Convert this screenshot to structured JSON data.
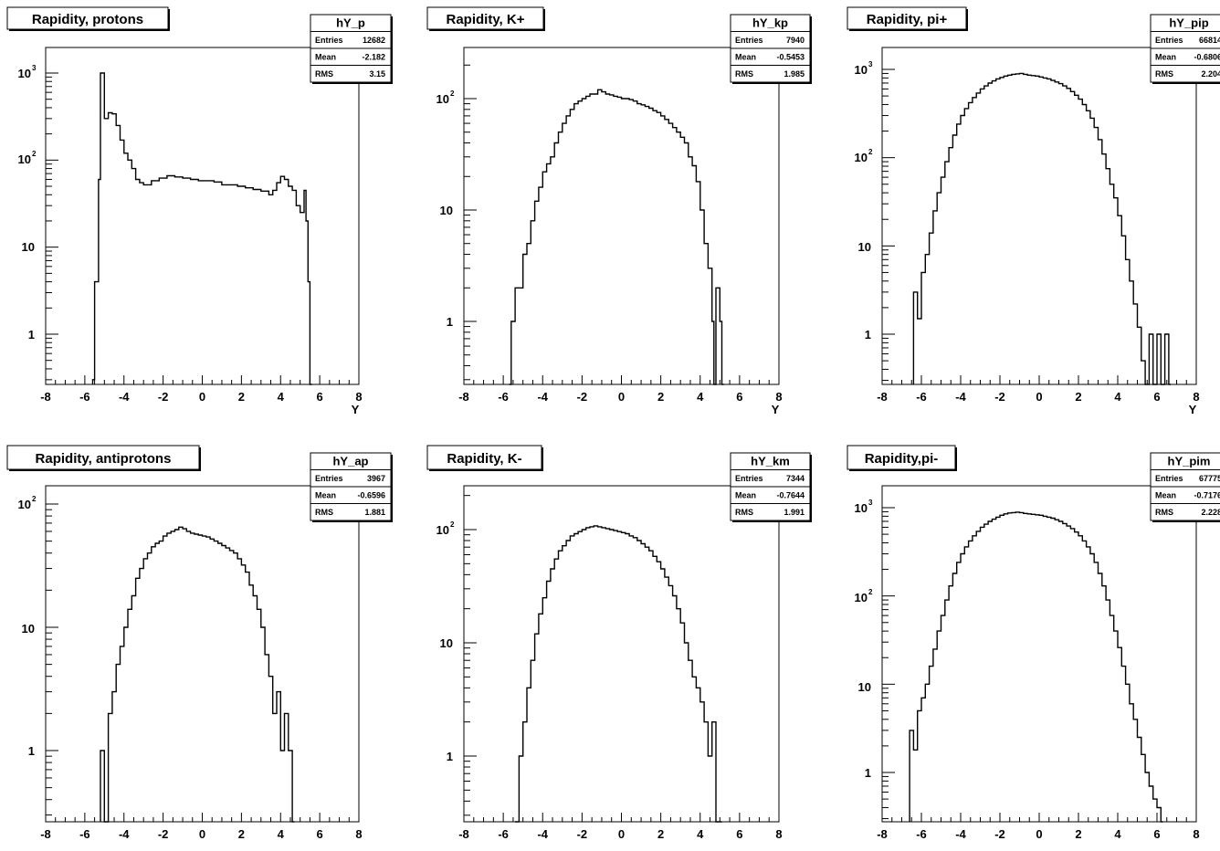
{
  "chart_data": [
    {
      "type": "histogram",
      "title": "Rapidity, protons",
      "xlabel": "Y",
      "xlim": [
        -8,
        8
      ],
      "yscale": "log",
      "ylim": [
        0.26,
        1500
      ],
      "stats": {
        "name": "hY_p",
        "entries": "12682",
        "mean": "-2.182",
        "rms": "3.15"
      },
      "series": [
        {
          "name": "hY_p",
          "x": [
            -5.6,
            -5.5,
            -5.3,
            -5.2,
            -5.0,
            -4.8,
            -4.6,
            -4.4,
            -4.2,
            -4.0,
            -3.8,
            -3.6,
            -3.4,
            -3.2,
            -3.0,
            -2.6,
            -2.2,
            -1.8,
            -1.4,
            -1.0,
            -0.6,
            -0.2,
            0.2,
            0.6,
            1.0,
            1.4,
            1.8,
            2.2,
            2.6,
            3.0,
            3.4,
            3.6,
            3.8,
            4.0,
            4.2,
            4.4,
            4.6,
            4.8,
            5.0,
            5.2,
            5.3,
            5.4,
            5.5
          ],
          "y": [
            0.3,
            4,
            60,
            1000,
            300,
            350,
            340,
            250,
            170,
            120,
            100,
            80,
            60,
            55,
            52,
            58,
            62,
            66,
            64,
            62,
            60,
            58,
            58,
            56,
            52,
            52,
            50,
            48,
            46,
            44,
            40,
            45,
            55,
            65,
            60,
            50,
            45,
            30,
            25,
            45,
            20,
            4,
            0.26
          ]
        }
      ]
    },
    {
      "type": "histogram",
      "title": "Rapidity, K+",
      "xlabel": "Y",
      "xlim": [
        -8,
        8
      ],
      "yscale": "log",
      "ylim": [
        0.26,
        280
      ],
      "stats": {
        "name": "hY_kp",
        "entries": "7940",
        "mean": "-0.5453",
        "rms": "1.985"
      },
      "series": [
        {
          "name": "hY_kp",
          "x": [
            -5.7,
            -5.6,
            -5.4,
            -5.2,
            -5.0,
            -4.8,
            -4.6,
            -4.4,
            -4.2,
            -4.0,
            -3.8,
            -3.6,
            -3.4,
            -3.2,
            -3.0,
            -2.8,
            -2.6,
            -2.4,
            -2.2,
            -2.0,
            -1.8,
            -1.6,
            -1.4,
            -1.2,
            -1.0,
            -0.8,
            -0.6,
            -0.4,
            -0.2,
            0.0,
            0.2,
            0.4,
            0.6,
            0.8,
            1.0,
            1.2,
            1.4,
            1.6,
            1.8,
            2.0,
            2.2,
            2.4,
            2.6,
            2.8,
            3.0,
            3.2,
            3.4,
            3.6,
            3.8,
            4.0,
            4.2,
            4.4,
            4.6,
            4.7,
            4.8,
            5.0,
            5.1
          ],
          "y": [
            0.26,
            1,
            2,
            2,
            4,
            5,
            8,
            12,
            16,
            22,
            26,
            30,
            40,
            50,
            60,
            70,
            80,
            90,
            95,
            100,
            105,
            110,
            110,
            120,
            115,
            110,
            108,
            105,
            103,
            100,
            100,
            98,
            95,
            90,
            88,
            85,
            82,
            78,
            75,
            70,
            65,
            60,
            55,
            50,
            45,
            40,
            30,
            25,
            18,
            10,
            5,
            3,
            1,
            0.26,
            2,
            1,
            0.26
          ]
        }
      ]
    },
    {
      "type": "histogram",
      "title": "Rapidity, pi+",
      "xlabel": "Y",
      "xlim": [
        -8,
        8
      ],
      "yscale": "log",
      "ylim": [
        0.26,
        1500
      ],
      "stats": {
        "name": "hY_pip",
        "entries": "66814",
        "mean": "-0.6806",
        "rms": "2.204"
      },
      "series": [
        {
          "name": "hY_pip",
          "x": [
            -6.4,
            -6.2,
            -6.0,
            -5.8,
            -5.6,
            -5.4,
            -5.2,
            -5.0,
            -4.8,
            -4.6,
            -4.4,
            -4.2,
            -4.0,
            -3.8,
            -3.6,
            -3.4,
            -3.2,
            -3.0,
            -2.8,
            -2.6,
            -2.4,
            -2.2,
            -2.0,
            -1.8,
            -1.6,
            -1.4,
            -1.2,
            -1.0,
            -0.8,
            -0.6,
            -0.4,
            -0.2,
            0.0,
            0.2,
            0.4,
            0.6,
            0.8,
            1.0,
            1.2,
            1.4,
            1.6,
            1.8,
            2.0,
            2.2,
            2.4,
            2.6,
            2.8,
            3.0,
            3.2,
            3.4,
            3.6,
            3.8,
            4.0,
            4.2,
            4.4,
            4.6,
            4.8,
            5.0,
            5.2,
            5.4,
            5.6,
            5.8,
            6.0,
            6.2,
            6.4,
            6.6
          ],
          "y": [
            3,
            1.5,
            5,
            8,
            14,
            25,
            40,
            60,
            90,
            130,
            180,
            240,
            300,
            360,
            420,
            480,
            540,
            600,
            650,
            700,
            740,
            780,
            810,
            840,
            860,
            880,
            890,
            900,
            880,
            860,
            850,
            840,
            820,
            800,
            780,
            750,
            720,
            690,
            650,
            610,
            560,
            510,
            460,
            400,
            340,
            280,
            220,
            160,
            110,
            75,
            50,
            35,
            22,
            13,
            7,
            4,
            2.2,
            1.2,
            0.5,
            0.26,
            1,
            0.26,
            1,
            0.26,
            1,
            0.26
          ]
        }
      ]
    },
    {
      "type": "histogram",
      "title": "Rapidity, antiprotons",
      "xlabel": "",
      "xlim": [
        -8,
        8
      ],
      "yscale": "log",
      "ylim": [
        0.26,
        110
      ],
      "stats": {
        "name": "hY_ap",
        "entries": "3967",
        "mean": "-0.6596",
        "rms": "1.881"
      },
      "series": [
        {
          "name": "hY_ap",
          "x": [
            -5.2,
            -5.0,
            -4.8,
            -4.6,
            -4.4,
            -4.2,
            -4.0,
            -3.8,
            -3.6,
            -3.4,
            -3.2,
            -3.0,
            -2.8,
            -2.6,
            -2.4,
            -2.2,
            -2.0,
            -1.8,
            -1.6,
            -1.4,
            -1.2,
            -1.0,
            -0.8,
            -0.6,
            -0.4,
            -0.2,
            0.0,
            0.2,
            0.4,
            0.6,
            0.8,
            1.0,
            1.2,
            1.4,
            1.6,
            1.8,
            2.0,
            2.2,
            2.4,
            2.6,
            2.8,
            3.0,
            3.2,
            3.4,
            3.6,
            3.8,
            4.0,
            4.2,
            4.4,
            4.6
          ],
          "y": [
            1,
            0.26,
            2,
            3,
            5,
            7,
            10,
            14,
            18,
            25,
            30,
            36,
            40,
            45,
            48,
            50,
            55,
            58,
            60,
            62,
            65,
            63,
            60,
            58,
            57,
            56,
            55,
            54,
            52,
            50,
            48,
            46,
            44,
            42,
            40,
            36,
            32,
            28,
            22,
            18,
            14,
            10,
            6,
            4,
            2,
            3,
            1,
            2,
            1,
            0.26
          ]
        }
      ]
    },
    {
      "type": "histogram",
      "title": "Rapidity, K-",
      "xlabel": "",
      "xlim": [
        -8,
        8
      ],
      "yscale": "log",
      "ylim": [
        0.26,
        280
      ],
      "stats": {
        "name": "hY_km",
        "entries": "7344",
        "mean": "-0.7644",
        "rms": "1.991"
      },
      "series": [
        {
          "name": "hY_km",
          "x": [
            -5.4,
            -5.2,
            -5.0,
            -4.8,
            -4.6,
            -4.4,
            -4.2,
            -4.0,
            -3.8,
            -3.6,
            -3.4,
            -3.2,
            -3.0,
            -2.8,
            -2.6,
            -2.4,
            -2.2,
            -2.0,
            -1.8,
            -1.6,
            -1.4,
            -1.2,
            -1.0,
            -0.8,
            -0.6,
            -0.4,
            -0.2,
            0.0,
            0.2,
            0.4,
            0.6,
            0.8,
            1.0,
            1.2,
            1.4,
            1.6,
            1.8,
            2.0,
            2.2,
            2.4,
            2.6,
            2.8,
            3.0,
            3.2,
            3.4,
            3.6,
            3.8,
            4.0,
            4.2,
            4.4,
            4.6,
            4.8,
            5.0
          ],
          "y": [
            0.26,
            1,
            2,
            4,
            7,
            12,
            18,
            25,
            35,
            45,
            55,
            65,
            72,
            80,
            88,
            92,
            96,
            100,
            104,
            106,
            108,
            106,
            104,
            102,
            100,
            98,
            96,
            94,
            92,
            88,
            85,
            80,
            75,
            70,
            65,
            58,
            52,
            45,
            38,
            32,
            26,
            20,
            15,
            10,
            7,
            5,
            4,
            3,
            2,
            1,
            2,
            0.26,
            0.26
          ]
        }
      ]
    },
    {
      "type": "histogram",
      "title": "Rapidity,pi-",
      "xlabel": "",
      "xlim": [
        -8,
        8
      ],
      "yscale": "log",
      "ylim": [
        0.26,
        1500
      ],
      "stats": {
        "name": "hY_pim",
        "entries": "67775",
        "mean": "-0.7176",
        "rms": "2.228"
      },
      "series": [
        {
          "name": "hY_pim",
          "x": [
            -6.6,
            -6.4,
            -6.2,
            -6.0,
            -5.8,
            -5.6,
            -5.4,
            -5.2,
            -5.0,
            -4.8,
            -4.6,
            -4.4,
            -4.2,
            -4.0,
            -3.8,
            -3.6,
            -3.4,
            -3.2,
            -3.0,
            -2.8,
            -2.6,
            -2.4,
            -2.2,
            -2.0,
            -1.8,
            -1.6,
            -1.4,
            -1.2,
            -1.0,
            -0.8,
            -0.6,
            -0.4,
            -0.2,
            0.0,
            0.2,
            0.4,
            0.6,
            0.8,
            1.0,
            1.2,
            1.4,
            1.6,
            1.8,
            2.0,
            2.2,
            2.4,
            2.6,
            2.8,
            3.0,
            3.2,
            3.4,
            3.6,
            3.8,
            4.0,
            4.2,
            4.4,
            4.6,
            4.8,
            5.0,
            5.2,
            5.4,
            5.6,
            5.8,
            6.0,
            6.2
          ],
          "y": [
            3,
            1.8,
            5,
            7,
            10,
            16,
            25,
            40,
            60,
            90,
            130,
            180,
            240,
            300,
            360,
            420,
            480,
            540,
            600,
            650,
            700,
            740,
            780,
            820,
            850,
            870,
            880,
            890,
            880,
            860,
            850,
            840,
            830,
            820,
            800,
            780,
            760,
            730,
            700,
            660,
            620,
            580,
            530,
            480,
            420,
            360,
            300,
            240,
            180,
            130,
            90,
            60,
            40,
            26,
            16,
            10,
            6,
            4,
            2.5,
            1.6,
            1,
            0.7,
            0.5,
            0.4,
            0.26
          ]
        }
      ]
    }
  ],
  "labels": {
    "entries": "Entries",
    "mean": "Mean",
    "rms": "RMS"
  }
}
